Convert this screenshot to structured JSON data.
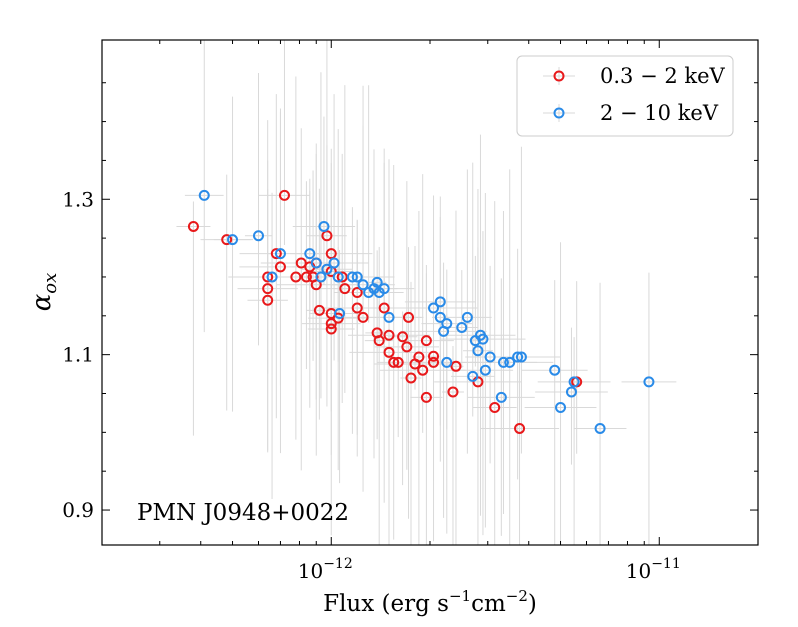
{
  "chart_data": {
    "type": "scatter",
    "title": "",
    "annotation": "PMN J0948+0022",
    "xlabel": "Flux (erg s",
    "xlabel_sup1": "−1",
    "xlabel_mid": "cm",
    "xlabel_sup2": "−2",
    "xlabel_end": ")",
    "ylabel": "α",
    "ylabel_sub": "ox",
    "xscale": "log",
    "xlim": [
      2e-13,
      2e-11
    ],
    "ylim": [
      0.855,
      1.505
    ],
    "xticks": [
      {
        "value": 1e-12,
        "base": "10",
        "exp": "−12"
      },
      {
        "value": 1e-11,
        "base": "10",
        "exp": "−11"
      }
    ],
    "yticks": [
      {
        "value": 0.9,
        "label": "0.9"
      },
      {
        "value": 1.1,
        "label": "1.1"
      },
      {
        "value": 1.3,
        "label": "1.3"
      }
    ],
    "legend_position": "top-right",
    "series": [
      {
        "name": "0.3 − 2 keV",
        "color": "#e8191b",
        "points": [
          [
            3.8e-13,
            1.265
          ],
          [
            4.8e-13,
            1.248
          ],
          [
            6.4e-13,
            1.2
          ],
          [
            6.4e-13,
            1.185
          ],
          [
            6.4e-13,
            1.17
          ],
          [
            6.8e-13,
            1.23
          ],
          [
            7e-13,
            1.213
          ],
          [
            7.2e-13,
            1.305
          ],
          [
            7.8e-13,
            1.2
          ],
          [
            8.1e-13,
            1.218
          ],
          [
            8.4e-13,
            1.2
          ],
          [
            8.6e-13,
            1.213
          ],
          [
            8.8e-13,
            1.2
          ],
          [
            9e-13,
            1.19
          ],
          [
            9e-13,
            1.218
          ],
          [
            9.2e-13,
            1.157
          ],
          [
            9.7e-13,
            1.253
          ],
          [
            1e-12,
            1.23
          ],
          [
            1e-12,
            1.207
          ],
          [
            1e-12,
            1.153
          ],
          [
            1e-12,
            1.14
          ],
          [
            1e-12,
            1.133
          ],
          [
            1.05e-12,
            1.147
          ],
          [
            1.08e-12,
            1.2
          ],
          [
            1.1e-12,
            1.185
          ],
          [
            1.2e-12,
            1.18
          ],
          [
            1.2e-12,
            1.16
          ],
          [
            1.25e-12,
            1.148
          ],
          [
            1.38e-12,
            1.128
          ],
          [
            1.4e-12,
            1.118
          ],
          [
            1.45e-12,
            1.16
          ],
          [
            1.5e-12,
            1.125
          ],
          [
            1.5e-12,
            1.103
          ],
          [
            1.55e-12,
            1.09
          ],
          [
            1.6e-12,
            1.09
          ],
          [
            1.65e-12,
            1.123
          ],
          [
            1.7e-12,
            1.11
          ],
          [
            1.72e-12,
            1.148
          ],
          [
            1.75e-12,
            1.07
          ],
          [
            1.8e-12,
            1.088
          ],
          [
            1.85e-12,
            1.097
          ],
          [
            1.9e-12,
            1.08
          ],
          [
            1.95e-12,
            1.045
          ],
          [
            1.95e-12,
            1.118
          ],
          [
            2.05e-12,
            1.09
          ],
          [
            2.05e-12,
            1.098
          ],
          [
            2.35e-12,
            1.052
          ],
          [
            2.4e-12,
            1.085
          ],
          [
            2.8e-12,
            1.065
          ],
          [
            3.15e-12,
            1.032
          ],
          [
            3.75e-12,
            1.005
          ],
          [
            5.6e-12,
            1.065
          ]
        ]
      },
      {
        "name": "2 − 10 keV",
        "color": "#2a8be8",
        "points": [
          [
            4.1e-13,
            1.305
          ],
          [
            5e-13,
            1.248
          ],
          [
            6e-13,
            1.253
          ],
          [
            6.6e-13,
            1.2
          ],
          [
            7e-13,
            1.23
          ],
          [
            8.6e-13,
            1.23
          ],
          [
            9e-13,
            1.218
          ],
          [
            9.3e-13,
            1.2
          ],
          [
            9.5e-13,
            1.265
          ],
          [
            9.7e-13,
            1.21
          ],
          [
            1.02e-12,
            1.218
          ],
          [
            1.05e-12,
            1.2
          ],
          [
            1.06e-12,
            1.153
          ],
          [
            1.16e-12,
            1.2
          ],
          [
            1.2e-12,
            1.2
          ],
          [
            1.25e-12,
            1.19
          ],
          [
            1.3e-12,
            1.18
          ],
          [
            1.35e-12,
            1.185
          ],
          [
            1.38e-12,
            1.193
          ],
          [
            1.4e-12,
            1.18
          ],
          [
            1.45e-12,
            1.185
          ],
          [
            1.5e-12,
            1.148
          ],
          [
            2.05e-12,
            1.16
          ],
          [
            2.15e-12,
            1.168
          ],
          [
            2.15e-12,
            1.148
          ],
          [
            2.2e-12,
            1.13
          ],
          [
            2.25e-12,
            1.14
          ],
          [
            2.25e-12,
            1.09
          ],
          [
            2.5e-12,
            1.135
          ],
          [
            2.6e-12,
            1.148
          ],
          [
            2.7e-12,
            1.072
          ],
          [
            2.75e-12,
            1.118
          ],
          [
            2.8e-12,
            1.105
          ],
          [
            2.85e-12,
            1.125
          ],
          [
            2.9e-12,
            1.12
          ],
          [
            2.95e-12,
            1.08
          ],
          [
            3.05e-12,
            1.097
          ],
          [
            3.3e-12,
            1.045
          ],
          [
            3.35e-12,
            1.09
          ],
          [
            3.5e-12,
            1.09
          ],
          [
            3.7e-12,
            1.097
          ],
          [
            3.8e-12,
            1.097
          ],
          [
            4.8e-12,
            1.08
          ],
          [
            5e-12,
            1.032
          ],
          [
            5.4e-12,
            1.052
          ],
          [
            5.5e-12,
            1.065
          ],
          [
            6.6e-12,
            1.005
          ],
          [
            9.3e-12,
            1.065
          ]
        ]
      }
    ]
  }
}
